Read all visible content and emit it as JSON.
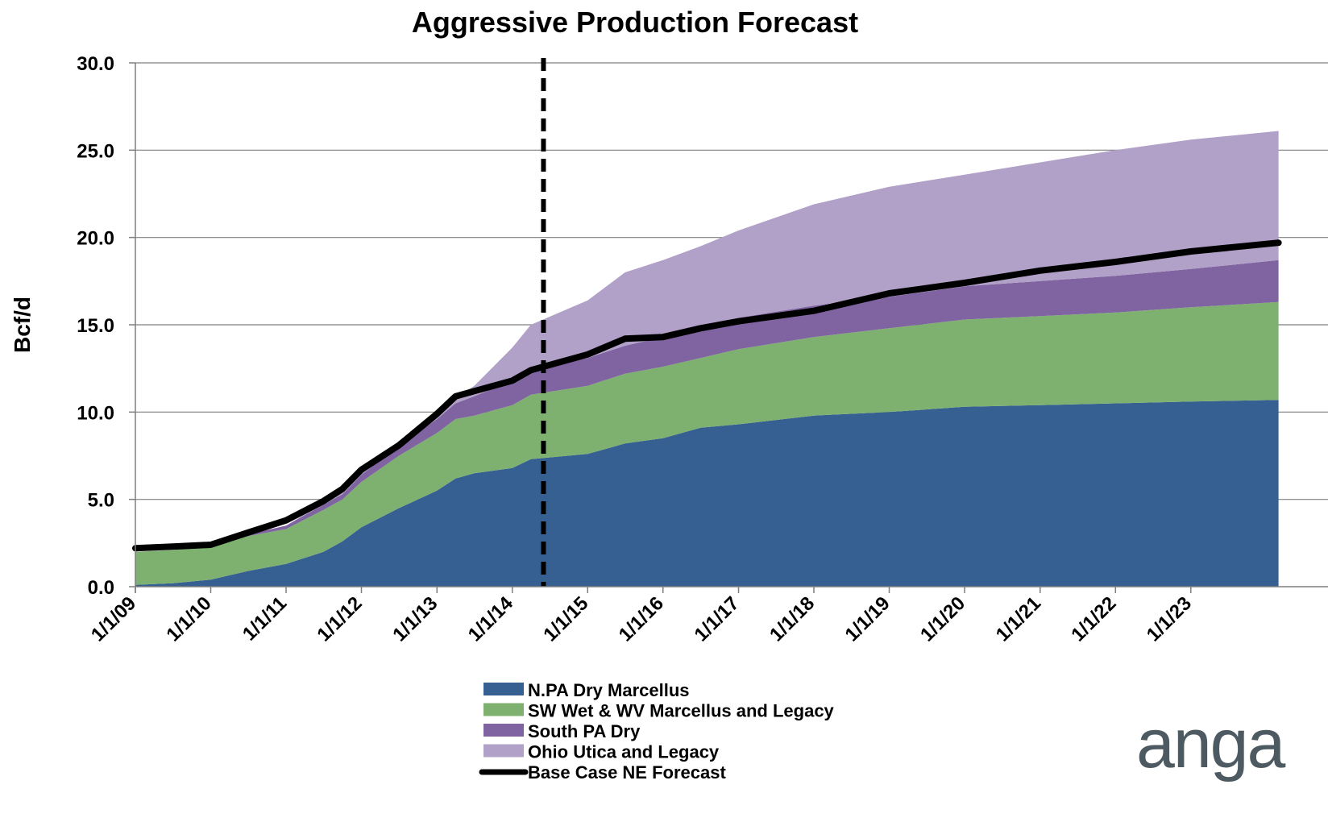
{
  "chart_data": {
    "type": "area",
    "title": "Aggressive Production Forecast",
    "ylabel": "Bcf/d",
    "xlabel": "",
    "x_axis": "date",
    "xlim": [
      "2009-01-01",
      "2024-03-31"
    ],
    "ylim": [
      0,
      30
    ],
    "y_ticks": [
      "0.0",
      "5.0",
      "10.0",
      "15.0",
      "20.0",
      "25.0",
      "30.0"
    ],
    "x_ticks": [
      "1/1/09",
      "1/1/10",
      "1/1/11",
      "1/1/12",
      "1/1/13",
      "1/1/14",
      "1/1/15",
      "1/1/16",
      "1/1/17",
      "1/1/18",
      "1/1/19",
      "1/1/20",
      "1/1/21",
      "1/1/22",
      "1/1/23"
    ],
    "x_tick_dates": [
      "2009-01-01",
      "2010-01-01",
      "2011-01-01",
      "2012-01-01",
      "2013-01-01",
      "2014-01-01",
      "2015-01-01",
      "2016-01-01",
      "2017-01-01",
      "2018-01-01",
      "2019-01-01",
      "2020-01-01",
      "2021-01-01",
      "2022-01-01",
      "2023-01-01"
    ],
    "grid": "horizontal",
    "stacked": true,
    "legend_position": "bottom",
    "marker_line": {
      "date": "2014-06-01",
      "style": "dashed",
      "color": "#000000"
    },
    "x": [
      "2009-01-01",
      "2009-07-01",
      "2010-01-01",
      "2010-07-01",
      "2011-01-01",
      "2011-07-01",
      "2011-10-01",
      "2012-01-01",
      "2012-07-01",
      "2013-01-01",
      "2013-04-01",
      "2013-07-01",
      "2014-01-01",
      "2014-04-01",
      "2015-01-01",
      "2015-07-01",
      "2016-01-01",
      "2016-07-01",
      "2017-01-01",
      "2018-01-01",
      "2019-01-01",
      "2020-01-01",
      "2021-01-01",
      "2022-01-01",
      "2023-01-01",
      "2024-03-01"
    ],
    "series": [
      {
        "name": "N.PA Dry Marcellus",
        "color": "#376092",
        "values": [
          0.1,
          0.2,
          0.4,
          0.9,
          1.3,
          2.0,
          2.6,
          3.4,
          4.5,
          5.5,
          6.2,
          6.5,
          6.8,
          7.3,
          7.6,
          8.2,
          8.5,
          9.1,
          9.3,
          9.8,
          10.0,
          10.3,
          10.4,
          10.5,
          10.6,
          10.7
        ]
      },
      {
        "name": "SW Wet & WV Marcellus and Legacy",
        "color": "#7eb070",
        "values": [
          1.9,
          1.9,
          1.9,
          2.0,
          2.0,
          2.4,
          2.4,
          2.6,
          3.0,
          3.3,
          3.4,
          3.3,
          3.6,
          3.7,
          3.9,
          4.0,
          4.1,
          4.0,
          4.3,
          4.5,
          4.8,
          5.0,
          5.1,
          5.2,
          5.4,
          5.6
        ]
      },
      {
        "name": "South PA Dry",
        "color": "#8064a2",
        "values": [
          0.0,
          0.0,
          0.0,
          0.1,
          0.2,
          0.3,
          0.3,
          0.4,
          0.6,
          0.8,
          0.9,
          1.1,
          1.4,
          1.5,
          1.6,
          1.6,
          1.7,
          1.8,
          1.8,
          1.8,
          1.8,
          1.9,
          2.0,
          2.1,
          2.2,
          2.4
        ]
      },
      {
        "name": "Ohio Utica and Legacy",
        "color": "#b1a0c7",
        "values": [
          0.0,
          0.0,
          0.0,
          0.0,
          0.0,
          0.1,
          0.1,
          0.1,
          0.1,
          0.2,
          0.3,
          0.6,
          1.9,
          2.5,
          3.3,
          4.2,
          4.4,
          4.6,
          5.0,
          5.8,
          6.3,
          6.4,
          6.8,
          7.2,
          7.4,
          7.4
        ]
      }
    ],
    "line_series": {
      "name": "Base Case NE Forecast",
      "color": "#000000",
      "values": [
        2.2,
        2.3,
        2.4,
        3.1,
        3.8,
        4.9,
        5.6,
        6.7,
        8.1,
        9.9,
        10.9,
        11.2,
        11.8,
        12.4,
        13.3,
        14.2,
        14.3,
        14.8,
        15.2,
        15.8,
        16.8,
        17.4,
        18.1,
        18.6,
        19.2,
        19.7
      ]
    }
  },
  "logo": {
    "text": "anga",
    "color": "#4d5a62"
  }
}
